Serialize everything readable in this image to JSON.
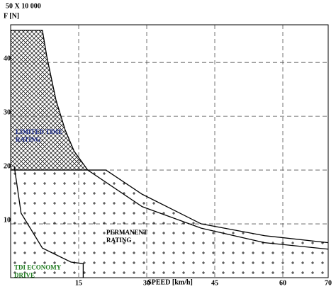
{
  "chart_data": {
    "type": "line",
    "title": "50 X 10 000",
    "y_label": "F [N]",
    "x_label": "SPEED [km/h]",
    "xlim": [
      0,
      70
    ],
    "xticks": [
      15,
      30,
      45,
      60,
      70
    ],
    "ylim": [
      0,
      47
    ],
    "yticks": [
      10,
      20,
      30,
      40
    ],
    "grid": true,
    "series": [
      {
        "name": "LIMITED TIME RATING",
        "color": "#1f2f8f",
        "pattern": "crosshatch",
        "fill_to": 20,
        "x": [
          0,
          7,
          8,
          10,
          12,
          14,
          17
        ],
        "values": [
          46,
          46,
          41,
          33,
          27.5,
          23.5,
          20
        ]
      },
      {
        "name": "PERMANENT RATING",
        "color": "#000000",
        "pattern": "dots",
        "fill_to": 0,
        "x": [
          0,
          21,
          29,
          42,
          56,
          70
        ],
        "values": [
          20,
          20,
          15.5,
          10,
          7.8,
          6.5
        ]
      },
      {
        "color": "#000000",
        "x": [
          17,
          29,
          42,
          56,
          70
        ],
        "values": [
          20,
          13.2,
          9.2,
          6.5,
          5.3
        ]
      },
      {
        "name": "TDI ECONOMY DRIVE",
        "color": "#1d7a1d",
        "x": [
          0.8,
          2.3,
          7,
          13.3,
          16,
          16
        ],
        "values": [
          20.7,
          12,
          5.5,
          2.9,
          2.6,
          0
        ]
      }
    ]
  }
}
